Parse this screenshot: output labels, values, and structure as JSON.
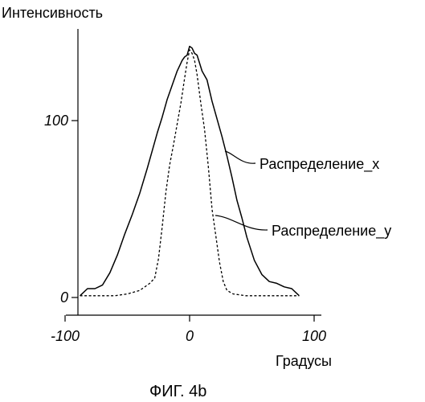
{
  "chart_data": {
    "type": "line",
    "title": "",
    "ylabel": "Интенсивность",
    "xlabel": "Градусы",
    "caption": "ФИГ. 4b",
    "xlim": [
      -100,
      100
    ],
    "ylim": [
      0,
      145
    ],
    "xticks": [
      -100,
      0,
      100
    ],
    "yticks": [
      0,
      100
    ],
    "xtick_labels": [
      "-100",
      "0",
      "100"
    ],
    "ytick_labels": [
      "0",
      "100"
    ],
    "grid": false,
    "series": [
      {
        "name": "Распределение_x",
        "style": "solid",
        "x": [
          -88,
          -82,
          -76,
          -70,
          -64,
          -58,
          -52,
          -46,
          -40,
          -34,
          -30,
          -26,
          -22,
          -18,
          -14,
          -10,
          -6,
          -4,
          -2,
          0,
          2,
          4,
          6,
          10,
          14,
          18,
          22,
          26,
          30,
          34,
          38,
          42,
          46,
          52,
          58,
          64,
          70,
          76,
          82,
          88
        ],
        "y": [
          1,
          5,
          5,
          7,
          14,
          24,
          36,
          47,
          59,
          73,
          83,
          93,
          102,
          112,
          120,
          128,
          134,
          136,
          137,
          142,
          141,
          138,
          137,
          128,
          123,
          111,
          101,
          91,
          80,
          68,
          55,
          45,
          34,
          21,
          13,
          9,
          8,
          6,
          5,
          1
        ]
      },
      {
        "name": "Распределение_y",
        "style": "dashed",
        "x": [
          -88,
          -80,
          -70,
          -60,
          -50,
          -40,
          -36,
          -32,
          -28,
          -25,
          -22,
          -19,
          -16,
          -13,
          -10,
          -7,
          -4,
          -2,
          0,
          2,
          4,
          6,
          9,
          12,
          15,
          18,
          21,
          24,
          27,
          30,
          35,
          45,
          60,
          75,
          88
        ],
        "y": [
          1,
          1,
          1,
          1,
          2,
          4,
          6,
          8,
          11,
          22,
          40,
          60,
          75,
          86,
          98,
          110,
          124,
          133,
          140,
          138,
          134,
          126,
          110,
          95,
          74,
          50,
          35,
          20,
          9,
          4,
          2,
          1,
          1,
          1,
          1
        ]
      }
    ],
    "annotations": [
      {
        "text": "Распределение_x",
        "series": 0
      },
      {
        "text": "Распределение_y",
        "series": 1
      }
    ]
  }
}
